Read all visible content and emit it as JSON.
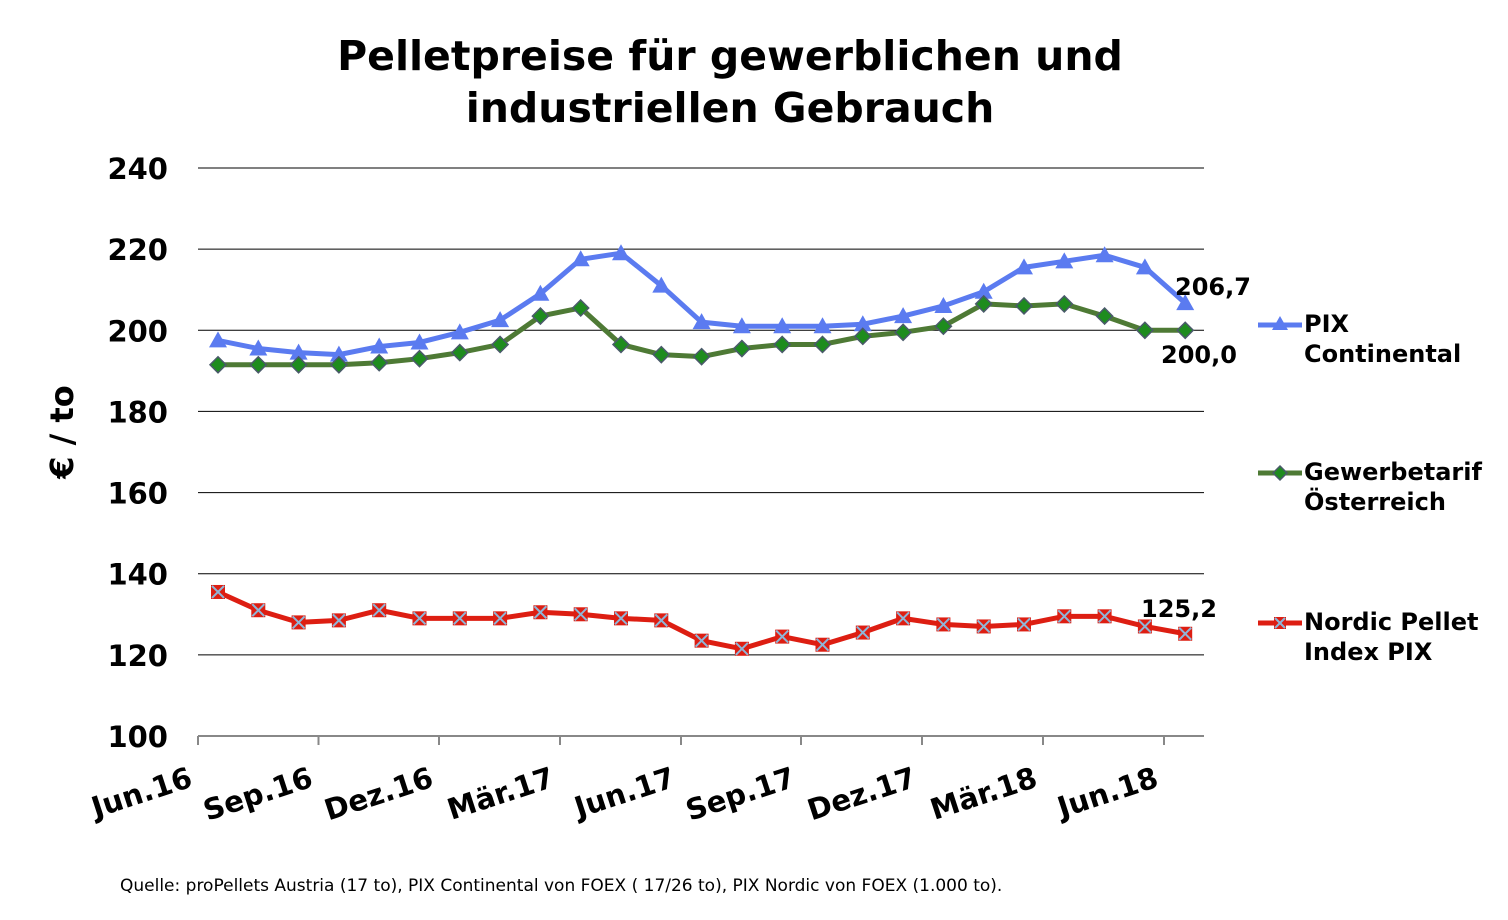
{
  "chart_data": {
    "type": "line",
    "title_lines": [
      "Pelletpreise für gewerblichen und",
      "industriellen Gebrauch"
    ],
    "xlabel": "",
    "ylabel": "€ / to",
    "ylim": [
      100,
      240
    ],
    "yticks": [
      100,
      120,
      140,
      160,
      180,
      200,
      220,
      240
    ],
    "grid": true,
    "legend_position": "right",
    "x_tick_labels": [
      "Jun.16",
      "Sep.16",
      "Dez.16",
      "Mär.17",
      "Jun.17",
      "Sep.17",
      "Dez.17",
      "Mär.18",
      "Jun.18"
    ],
    "x": [
      "Jun.16",
      "Jul.16",
      "Aug.16",
      "Sep.16",
      "Okt.16",
      "Nov.16",
      "Dez.16",
      "Jan.17",
      "Feb.17",
      "Mär.17",
      "Apr.17",
      "Mai.17",
      "Jun.17",
      "Jul.17",
      "Aug.17",
      "Sep.17",
      "Okt.17",
      "Nov.17",
      "Dez.17",
      "Jan.18",
      "Feb.18",
      "Mär.18",
      "Apr.18",
      "Mai.18",
      "Jun.18"
    ],
    "series": [
      {
        "name_lines": [
          "PIX",
          "Continental"
        ],
        "color": "#5b7bf0",
        "marker": "triangle",
        "values": [
          197.5,
          195.5,
          194.5,
          194.0,
          196.0,
          197.0,
          199.5,
          202.5,
          209.0,
          217.5,
          219.0,
          211.0,
          202.0,
          201.0,
          201.0,
          201.0,
          201.5,
          203.5,
          206.0,
          209.5,
          215.5,
          217.0,
          218.5,
          215.5,
          206.7
        ],
        "end_label": "206,7"
      },
      {
        "name_lines": [
          "Gewerbetarif",
          "Österreich"
        ],
        "color": "#4e7a35",
        "marker": "diamond",
        "values": [
          191.5,
          191.5,
          191.5,
          191.5,
          192.0,
          193.0,
          194.5,
          196.5,
          203.5,
          205.5,
          196.5,
          194.0,
          193.5,
          195.5,
          196.5,
          196.5,
          198.5,
          199.5,
          201.0,
          206.5,
          206.0,
          206.5,
          203.5,
          200.0,
          200.0
        ],
        "end_label": "200,0"
      },
      {
        "name_lines": [
          "Nordic Pellet",
          "Index PIX"
        ],
        "color": "#dd1e12",
        "marker": "x-square",
        "values": [
          135.5,
          131.0,
          128.0,
          128.5,
          131.0,
          129.0,
          129.0,
          129.0,
          130.5,
          130.0,
          129.0,
          128.5,
          123.5,
          121.5,
          124.5,
          122.5,
          125.5,
          129.0,
          127.5,
          127.0,
          127.5,
          129.5,
          129.5,
          127.0,
          125.2
        ],
        "end_label": "125,2"
      }
    ]
  },
  "source_note": "Quelle: proPellets Austria (17 to), PIX Continental von FOEX ( 17/26 to), PIX Nordic von FOEX (1.000 to)."
}
